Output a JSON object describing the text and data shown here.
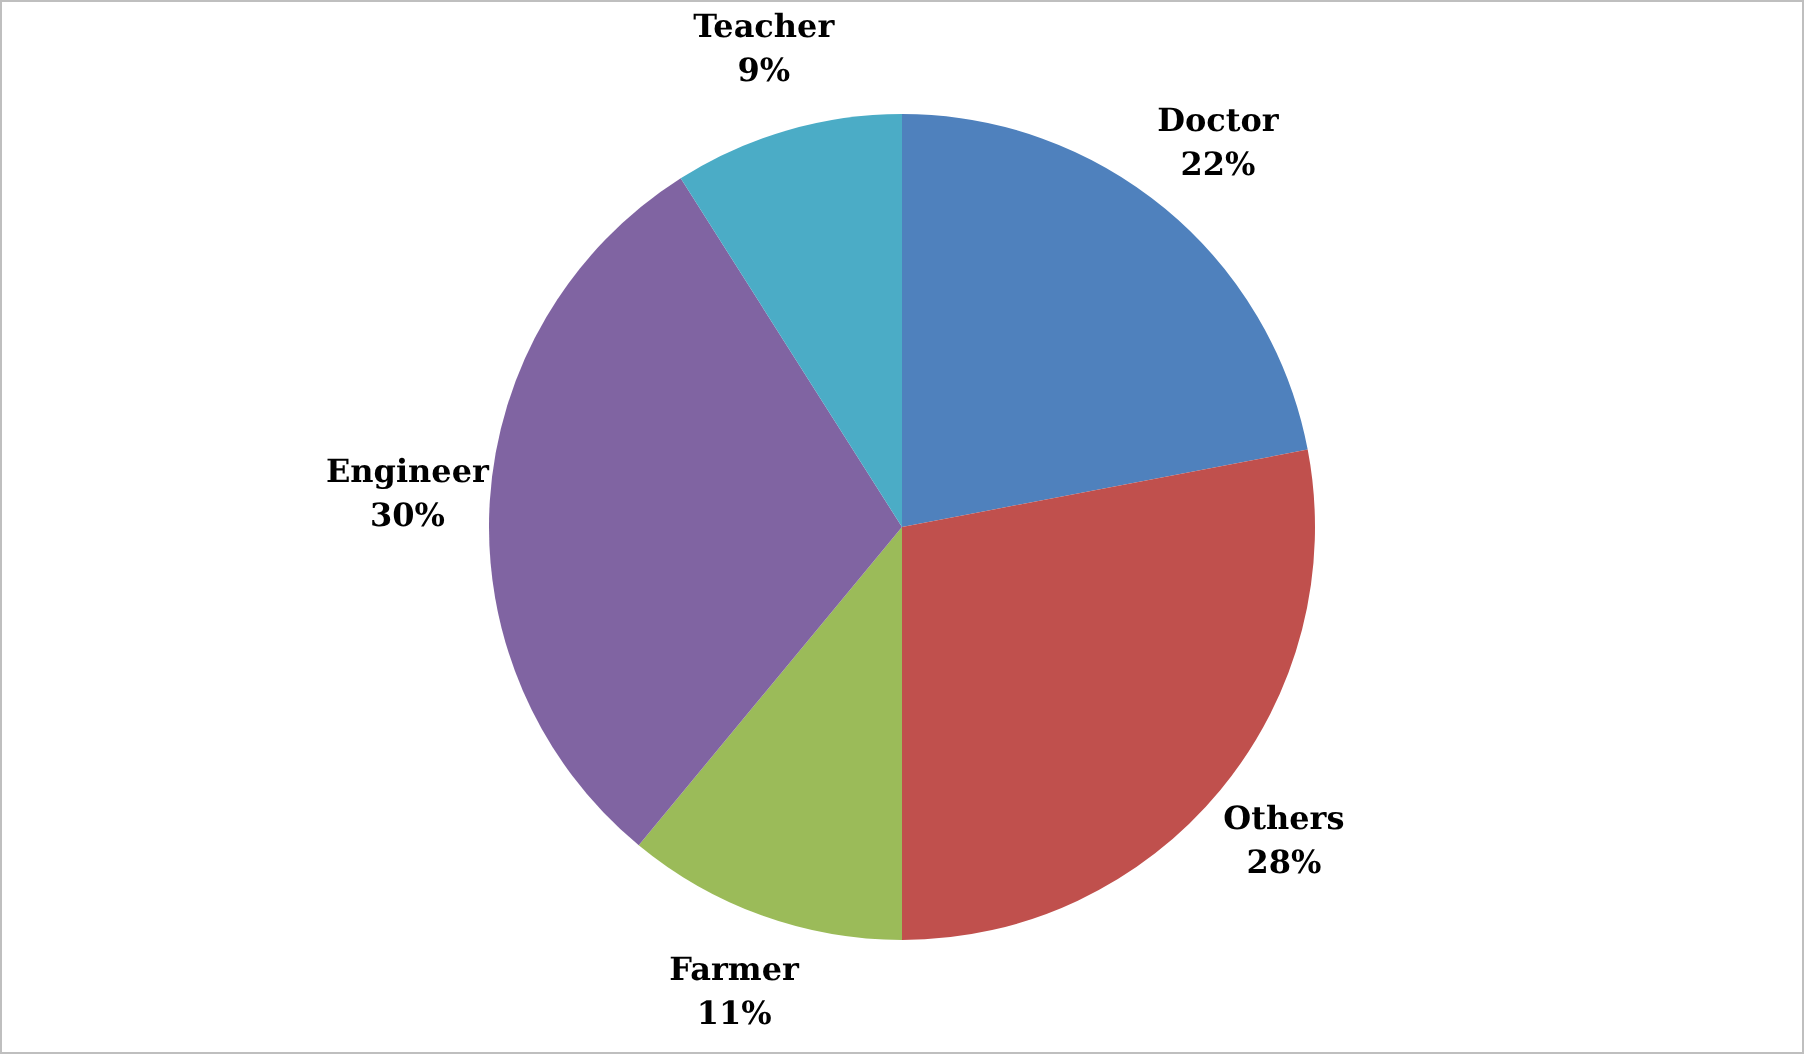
{
  "chart_data": {
    "type": "pie",
    "categories": [
      "Doctor",
      "Others",
      "Farmer",
      "Engineer",
      "Teacher"
    ],
    "values": [
      22,
      28,
      11,
      30,
      9
    ],
    "colors": [
      "#4f81bd",
      "#c0504d",
      "#9bbb59",
      "#8064a2",
      "#4bacc6"
    ],
    "value_labels": [
      "22%",
      "28%",
      "11%",
      "30%",
      "9%"
    ],
    "legend": false
  }
}
